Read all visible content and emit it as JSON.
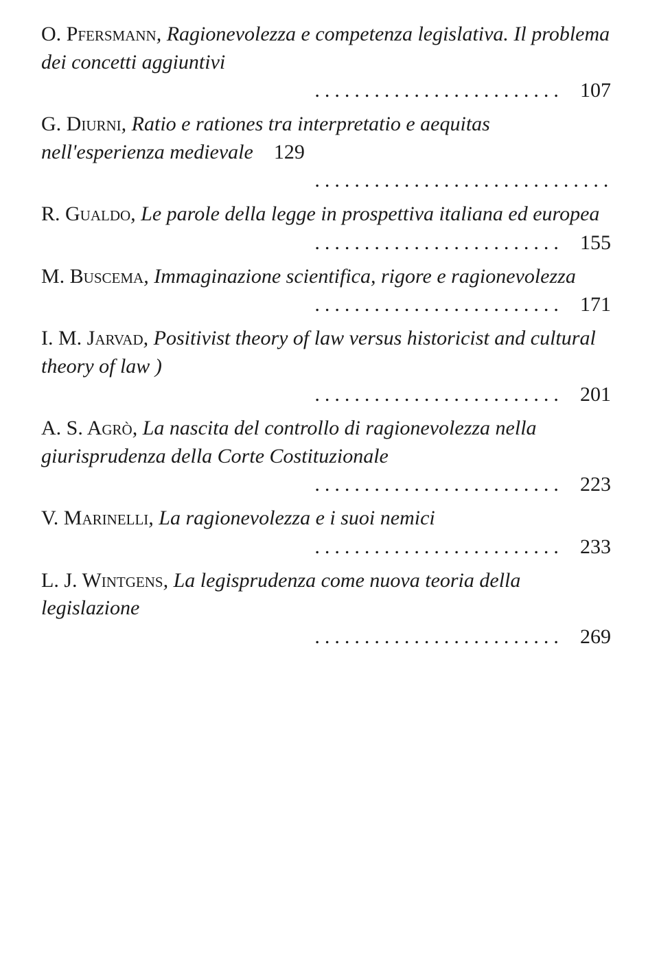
{
  "entries": [
    {
      "author": "O. Pfersmann",
      "title": ", Ragionevolezza e competenza legislativa. Il problema dei concetti aggiuntivi",
      "page": "107",
      "inlinePage": false
    },
    {
      "author": "G. Diurni",
      "title": ", Ratio e rationes tra interpretatio e aequitas nell'esperienza medievale",
      "page": "129",
      "inlinePage": true
    },
    {
      "author": "R. Gualdo",
      "title": ", Le parole della legge in prospettiva italiana ed europea",
      "page": "155",
      "inlinePage": false
    },
    {
      "author": "M. Buscema",
      "title": ", Immaginazione scientifica, rigore e ragionevolezza",
      "page": "171",
      "inlinePage": false
    },
    {
      "author": "I. M. Jarvad",
      "title": ", Positivist theory of law versus historicist and cultural theory of law )",
      "page": "201",
      "inlinePage": false
    },
    {
      "author": "A. S. Agrò",
      "title": ", La nascita del controllo di ragionevolezza nella giurisprudenza della Corte Costituzionale",
      "page": "223",
      "inlinePage": false
    },
    {
      "author": "V. Marinelli",
      "title": ", La ragionevolezza e i suoi nemici",
      "page": "233",
      "inlinePage": false
    },
    {
      "author": "L. J. Wintgens",
      "title": ", La legisprudenza come nuova teoria della legislazione",
      "page": "269",
      "inlinePage": false
    }
  ],
  "text_color": "#1a1a1a",
  "background_color": "#ffffff",
  "font_size_pt": 30,
  "dot_char": "."
}
